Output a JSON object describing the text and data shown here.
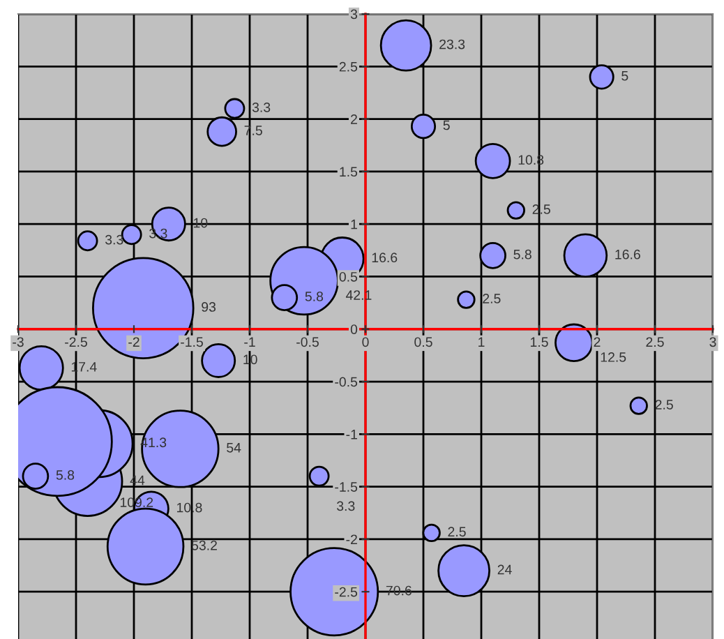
{
  "chart_data": {
    "type": "bubble",
    "color": "#9999ff",
    "xlim": [
      -3,
      3
    ],
    "ylim": [
      -2.95,
      3
    ],
    "xticks": [
      -3,
      -2.5,
      -2,
      -1.5,
      -1,
      -0.5,
      0,
      0.5,
      1,
      1.5,
      2,
      2.5,
      3
    ],
    "yticks": [
      -2.5,
      -2,
      -1.5,
      -1,
      -0.5,
      0,
      0.5,
      1,
      1.5,
      2,
      2.5,
      3
    ],
    "grid": true,
    "legend": false,
    "x": [
      0.35,
      2.04,
      0.5,
      1.1,
      1.3,
      1.1,
      1.9,
      0.87,
      1.8,
      2.36,
      0.57,
      0.85,
      -0.27,
      -0.4,
      -0.2,
      -0.53,
      -0.7,
      -1.13,
      -1.24,
      -1.7,
      -2.02,
      -2.4,
      -1.92,
      -1.27,
      -2.8,
      -2.4,
      -2.3,
      -2.66,
      -1.6,
      -2.85,
      -1.85,
      -1.9
    ],
    "values": [
      2.7,
      2.4,
      1.93,
      1.6,
      1.13,
      0.7,
      0.7,
      0.28,
      -0.13,
      -0.73,
      -1.94,
      -2.3,
      -2.5,
      -1.4,
      0.67,
      0.46,
      0.3,
      2.1,
      1.88,
      1.0,
      0.9,
      0.84,
      0.2,
      -0.3,
      -0.37,
      -1.45,
      -1.09,
      -1.07,
      -1.14,
      -1.4,
      -1.71,
      -2.07
    ],
    "sizes": [
      23.3,
      5,
      5,
      10.8,
      2.5,
      5.8,
      16.6,
      2.5,
      12.5,
      2.5,
      2.5,
      24,
      70.6,
      3.3,
      16.6,
      42.1,
      5.8,
      3.3,
      7.5,
      10,
      3.3,
      3.3,
      93,
      10,
      17.4,
      44,
      41.3,
      109.2,
      54,
      5.8,
      10.8,
      53.2
    ],
    "value_labels": [
      "23.3",
      "5",
      "5",
      "10.8",
      "2.5",
      "5.8",
      "16.6",
      "2.5",
      "12.5",
      "2.5",
      "2.5",
      "24",
      "70.6",
      "3.3",
      "16.6",
      "42.1",
      "5.8",
      "3.3",
      "7.5",
      "10",
      "3.3",
      "3.3",
      "93",
      "10",
      "17.4",
      "44",
      "41.3",
      "109.2",
      "54",
      "5.8",
      "10.8",
      "53.2"
    ]
  }
}
